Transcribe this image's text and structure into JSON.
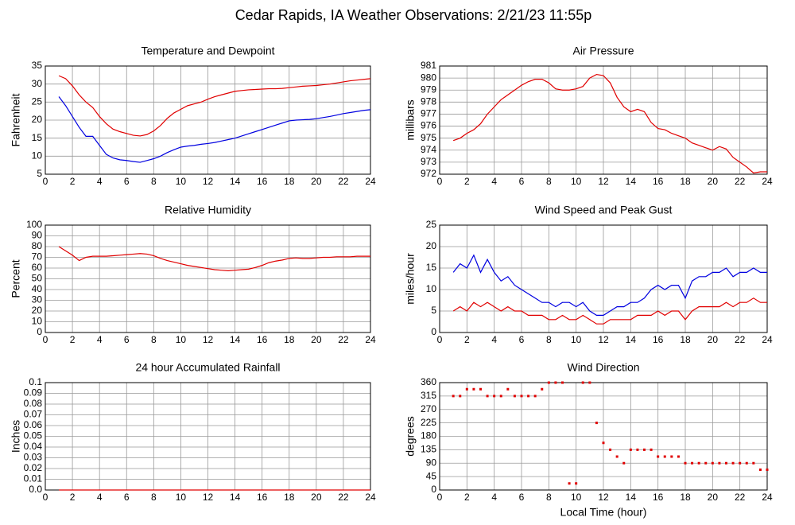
{
  "title": "Cedar Rapids, IA Weather Observations: 2/21/23 11:55p",
  "chart_data": [
    {
      "type": "line",
      "title": "Temperature and Dewpoint",
      "ylabel": "Fahrenheit",
      "x": [
        1,
        1.5,
        2,
        2.5,
        3,
        3.5,
        4,
        4.5,
        5,
        5.5,
        6,
        6.5,
        7,
        7.5,
        8,
        8.5,
        9,
        9.5,
        10,
        10.5,
        11,
        11.5,
        12,
        12.5,
        13,
        13.5,
        14,
        14.5,
        15,
        15.5,
        16,
        16.5,
        17,
        17.5,
        18,
        18.5,
        19,
        19.5,
        20,
        20.5,
        21,
        21.5,
        22,
        22.5,
        23,
        23.5,
        24
      ],
      "series": [
        {
          "color": "#e00000",
          "values": [
            32.3,
            31.5,
            29.5,
            27,
            25,
            23.5,
            21,
            19,
            17.5,
            16.8,
            16.3,
            15.8,
            15.6,
            16,
            17,
            18.5,
            20.5,
            22,
            23,
            24,
            24.5,
            25,
            25.8,
            26.5,
            27,
            27.5,
            28,
            28.2,
            28.4,
            28.5,
            28.6,
            28.7,
            28.7,
            28.8,
            29,
            29.2,
            29.4,
            29.5,
            29.6,
            29.8,
            30,
            30.3,
            30.6,
            30.9,
            31.1,
            31.3,
            31.5
          ]
        },
        {
          "color": "#0000e0",
          "values": [
            26.5,
            24,
            21,
            18,
            15.5,
            15.5,
            13,
            10.5,
            9.5,
            9,
            8.8,
            8.5,
            8.3,
            8.8,
            9.3,
            10,
            11,
            11.8,
            12.5,
            12.8,
            13,
            13.3,
            13.5,
            13.8,
            14.2,
            14.6,
            15,
            15.6,
            16.2,
            16.8,
            17.4,
            18,
            18.6,
            19.2,
            19.8,
            20,
            20.1,
            20.2,
            20.4,
            20.7,
            21,
            21.4,
            21.8,
            22.1,
            22.4,
            22.7,
            22.9
          ]
        }
      ],
      "xlim": [
        0,
        24
      ],
      "xticks": [
        0,
        2,
        4,
        6,
        8,
        10,
        12,
        14,
        16,
        18,
        20,
        22,
        24
      ],
      "ylim": [
        5,
        35
      ],
      "yticks": [
        5,
        10,
        15,
        20,
        25,
        30,
        35
      ],
      "grid": true
    },
    {
      "type": "line",
      "title": "Air Pressure",
      "ylabel": "millibars",
      "x": [
        1,
        1.5,
        2,
        2.5,
        3,
        3.5,
        4,
        4.5,
        5,
        5.5,
        6,
        6.5,
        7,
        7.5,
        8,
        8.5,
        9,
        9.5,
        10,
        10.5,
        11,
        11.5,
        12,
        12.5,
        13,
        13.5,
        14,
        14.5,
        15,
        15.5,
        16,
        16.5,
        17,
        17.5,
        18,
        18.5,
        19,
        19.5,
        20,
        20.5,
        21,
        21.5,
        22,
        22.5,
        23,
        23.5,
        24
      ],
      "series": [
        {
          "color": "#e00000",
          "values": [
            974.8,
            975,
            975.4,
            975.7,
            976.2,
            977,
            977.6,
            978.2,
            978.6,
            979,
            979.4,
            979.7,
            979.9,
            979.9,
            979.6,
            979.1,
            979,
            979,
            979.1,
            979.3,
            980,
            980.3,
            980.2,
            979.6,
            978.4,
            977.6,
            977.2,
            977.4,
            977.2,
            976.3,
            975.8,
            975.7,
            975.4,
            975.2,
            975,
            974.6,
            974.4,
            974.2,
            974,
            974.3,
            974.1,
            973.4,
            973,
            972.6,
            972.1,
            972.2,
            972.2
          ]
        }
      ],
      "xlim": [
        0,
        24
      ],
      "xticks": [
        0,
        2,
        4,
        6,
        8,
        10,
        12,
        14,
        16,
        18,
        20,
        22,
        24
      ],
      "ylim": [
        972,
        981
      ],
      "yticks": [
        972,
        973,
        974,
        975,
        976,
        977,
        978,
        979,
        980,
        981
      ],
      "grid": true
    },
    {
      "type": "line",
      "title": "Relative Humidity",
      "ylabel": "Percent",
      "x": [
        1,
        1.5,
        2,
        2.5,
        3,
        3.5,
        4,
        4.5,
        5,
        5.5,
        6,
        6.5,
        7,
        7.5,
        8,
        8.5,
        9,
        9.5,
        10,
        10.5,
        11,
        11.5,
        12,
        12.5,
        13,
        13.5,
        14,
        14.5,
        15,
        15.5,
        16,
        16.5,
        17,
        17.5,
        18,
        18.5,
        19,
        19.5,
        20,
        20.5,
        21,
        21.5,
        22,
        22.5,
        23,
        23.5,
        24
      ],
      "series": [
        {
          "color": "#e00000",
          "values": [
            80,
            76,
            72,
            67,
            70,
            71,
            71,
            71,
            71.5,
            72,
            72.5,
            73,
            73.5,
            73,
            71.5,
            69,
            67,
            65.5,
            64,
            62.5,
            61.5,
            60.5,
            59.5,
            58.5,
            58,
            57.5,
            58,
            58.5,
            59,
            60.5,
            62.5,
            65,
            66.5,
            67.5,
            69,
            69.5,
            69,
            69,
            69.5,
            70,
            70,
            70.5,
            70.5,
            70.5,
            71,
            71,
            71
          ]
        }
      ],
      "xlim": [
        0,
        24
      ],
      "xticks": [
        0,
        2,
        4,
        6,
        8,
        10,
        12,
        14,
        16,
        18,
        20,
        22,
        24
      ],
      "ylim": [
        0,
        100
      ],
      "yticks": [
        0,
        10,
        20,
        30,
        40,
        50,
        60,
        70,
        80,
        90,
        100
      ],
      "grid": true
    },
    {
      "type": "line",
      "title": "Wind Speed and Peak Gust",
      "ylabel": "miles/hour",
      "x": [
        1,
        1.5,
        2,
        2.5,
        3,
        3.5,
        4,
        4.5,
        5,
        5.5,
        6,
        6.5,
        7,
        7.5,
        8,
        8.5,
        9,
        9.5,
        10,
        10.5,
        11,
        11.5,
        12,
        12.5,
        13,
        13.5,
        14,
        14.5,
        15,
        15.5,
        16,
        16.5,
        17,
        17.5,
        18,
        18.5,
        19,
        19.5,
        20,
        20.5,
        21,
        21.5,
        22,
        22.5,
        23,
        23.5,
        24
      ],
      "series": [
        {
          "color": "#e00000",
          "values": [
            5,
            6,
            5,
            7,
            6,
            7,
            6,
            5,
            6,
            5,
            5,
            4,
            4,
            4,
            3,
            3,
            4,
            3,
            3,
            4,
            3,
            2,
            2,
            3,
            3,
            3,
            3,
            4,
            4,
            4,
            5,
            4,
            5,
            5,
            3,
            5,
            6,
            6,
            6,
            6,
            7,
            6,
            7,
            7,
            8,
            7,
            7
          ]
        },
        {
          "color": "#0000e0",
          "values": [
            14,
            16,
            15,
            18,
            14,
            17,
            14,
            12,
            13,
            11,
            10,
            9,
            8,
            7,
            7,
            6,
            7,
            7,
            6,
            7,
            5,
            4,
            4,
            5,
            6,
            6,
            7,
            7,
            8,
            10,
            11,
            10,
            11,
            11,
            8,
            12,
            13,
            13,
            14,
            14,
            15,
            13,
            14,
            14,
            15,
            14,
            14
          ]
        }
      ],
      "xlim": [
        0,
        24
      ],
      "xticks": [
        0,
        2,
        4,
        6,
        8,
        10,
        12,
        14,
        16,
        18,
        20,
        22,
        24
      ],
      "ylim": [
        0,
        25
      ],
      "yticks": [
        0,
        5,
        10,
        15,
        20,
        25
      ],
      "grid": true
    },
    {
      "type": "line",
      "title": "24 hour Accumulated Rainfall",
      "ylabel": "Inches",
      "x": [
        1,
        1.5,
        2,
        2.5,
        3,
        3.5,
        4,
        4.5,
        5,
        5.5,
        6,
        6.5,
        7,
        7.5,
        8,
        8.5,
        9,
        9.5,
        10,
        10.5,
        11,
        11.5,
        12,
        12.5,
        13,
        13.5,
        14,
        14.5,
        15,
        15.5,
        16,
        16.5,
        17,
        17.5,
        18,
        18.5,
        19,
        19.5,
        20,
        20.5,
        21,
        21.5,
        22,
        22.5,
        23,
        23.5,
        24
      ],
      "series": [
        {
          "color": "#e00000",
          "values": [
            0,
            0,
            0,
            0,
            0,
            0,
            0,
            0,
            0,
            0,
            0,
            0,
            0,
            0,
            0,
            0,
            0,
            0,
            0,
            0,
            0,
            0,
            0,
            0,
            0,
            0,
            0,
            0,
            0,
            0,
            0,
            0,
            0,
            0,
            0,
            0,
            0,
            0,
            0,
            0,
            0,
            0,
            0,
            0,
            0,
            0,
            0
          ]
        }
      ],
      "xlim": [
        0,
        24
      ],
      "xticks": [
        0,
        2,
        4,
        6,
        8,
        10,
        12,
        14,
        16,
        18,
        20,
        22,
        24
      ],
      "ylim": [
        0,
        0.1
      ],
      "yticks": [
        {
          "value": 0,
          "label": "0.0"
        },
        0.01,
        0.02,
        0.03,
        0.04,
        0.05,
        0.06,
        0.07,
        0.08,
        0.09,
        0.1
      ],
      "grid": true
    },
    {
      "type": "scatter",
      "title": "Wind Direction",
      "ylabel": "degrees",
      "xlabel": "Local Time (hour)",
      "x": [
        1,
        1.5,
        2,
        2.5,
        3,
        3.5,
        4,
        4.5,
        5,
        5.5,
        6,
        6.5,
        7,
        7.5,
        8,
        8.5,
        9,
        9.5,
        10,
        10.5,
        11,
        11.5,
        12,
        12.5,
        13,
        13.5,
        14,
        14.5,
        15,
        15.5,
        16,
        16.5,
        17,
        17.5,
        18,
        18.5,
        19,
        19.5,
        20,
        20.5,
        21,
        21.5,
        22,
        22.5,
        23,
        23.5,
        24
      ],
      "series": [
        {
          "color": "#e00000",
          "values": [
            315,
            315,
            338,
            338,
            338,
            315,
            315,
            315,
            338,
            315,
            315,
            315,
            315,
            338,
            360,
            360,
            360,
            22,
            22,
            360,
            360,
            225,
            158,
            135,
            112,
            90,
            135,
            135,
            135,
            135,
            112,
            112,
            112,
            112,
            90,
            90,
            90,
            90,
            90,
            90,
            90,
            90,
            90,
            90,
            90,
            68,
            68
          ]
        }
      ],
      "xlim": [
        0,
        24
      ],
      "xticks": [
        0,
        2,
        4,
        6,
        8,
        10,
        12,
        14,
        16,
        18,
        20,
        22,
        24
      ],
      "ylim": [
        0,
        360
      ],
      "yticks": [
        0,
        45,
        90,
        135,
        180,
        225,
        270,
        315,
        360
      ],
      "grid": true
    }
  ]
}
